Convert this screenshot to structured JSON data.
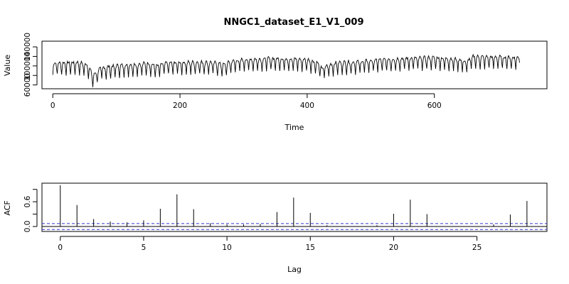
{
  "page_title": "NNGC1_dataset_E1_V1_009",
  "chart_data": [
    {
      "type": "line",
      "title": "NNGC1_dataset_E1_V1_009",
      "xlabel": "Time",
      "ylabel": "Value",
      "xlim": [
        -17,
        777
      ],
      "ylim": [
        52000,
        152000
      ],
      "xticks": [
        0,
        200,
        400,
        600
      ],
      "yticks": [
        60000,
        100000,
        140000
      ],
      "ytick_labels": [
        "60000",
        "100000",
        "140000"
      ],
      "series": [
        {
          "n_points": 735,
          "weekly_period": 7,
          "weekly_profile": [
            0.0,
            0.72,
            0.95,
            1.0,
            0.97,
            0.9,
            0.55
          ],
          "base_trend": {
            "t": [
              0,
              40,
              55,
              63,
              75,
              100,
              150,
              165,
              175,
              200,
              250,
              270,
              280,
              300,
              350,
              400,
              415,
              423,
              435,
              450,
              480,
              500,
              550,
              600,
              640,
              650,
              660,
              700,
              740
            ],
            "v": [
              100000,
              102000,
              97000,
              74000,
              90000,
              95000,
              100000,
              94000,
              100000,
              102000,
              102000,
              97000,
              104000,
              108000,
              110000,
              108000,
              102000,
              90000,
              97000,
              102000,
              103000,
              106000,
              110000,
              112000,
              108000,
              103000,
              114000,
              113000,
              112000
            ]
          },
          "amplitude": 26000,
          "color": "#000000"
        }
      ]
    },
    {
      "type": "bar",
      "subtype": "acf",
      "xlabel": "Lag",
      "ylabel": "ACF",
      "xlim": [
        -1.1,
        29.2
      ],
      "ylim": [
        -0.12,
        1.05
      ],
      "xticks": [
        0,
        5,
        10,
        15,
        20,
        25
      ],
      "yticks": [
        0.0,
        0.6
      ],
      "ytick_labels": [
        "0.0",
        "0.6"
      ],
      "lags": [
        0,
        1,
        2,
        3,
        4,
        5,
        6,
        7,
        8,
        9,
        10,
        11,
        12,
        13,
        14,
        15,
        16,
        17,
        18,
        19,
        20,
        21,
        22,
        23,
        24,
        25,
        26,
        27,
        28
      ],
      "values": [
        1.0,
        0.52,
        0.18,
        0.12,
        0.1,
        0.15,
        0.43,
        0.78,
        0.42,
        0.08,
        0.05,
        0.05,
        0.06,
        0.35,
        0.7,
        0.33,
        0.03,
        0.0,
        0.0,
        0.03,
        0.31,
        0.65,
        0.3,
        0.0,
        0.0,
        0.0,
        0.05,
        0.29,
        0.62
      ],
      "confidence_band": 0.072,
      "band_color": "#3333cc"
    }
  ]
}
